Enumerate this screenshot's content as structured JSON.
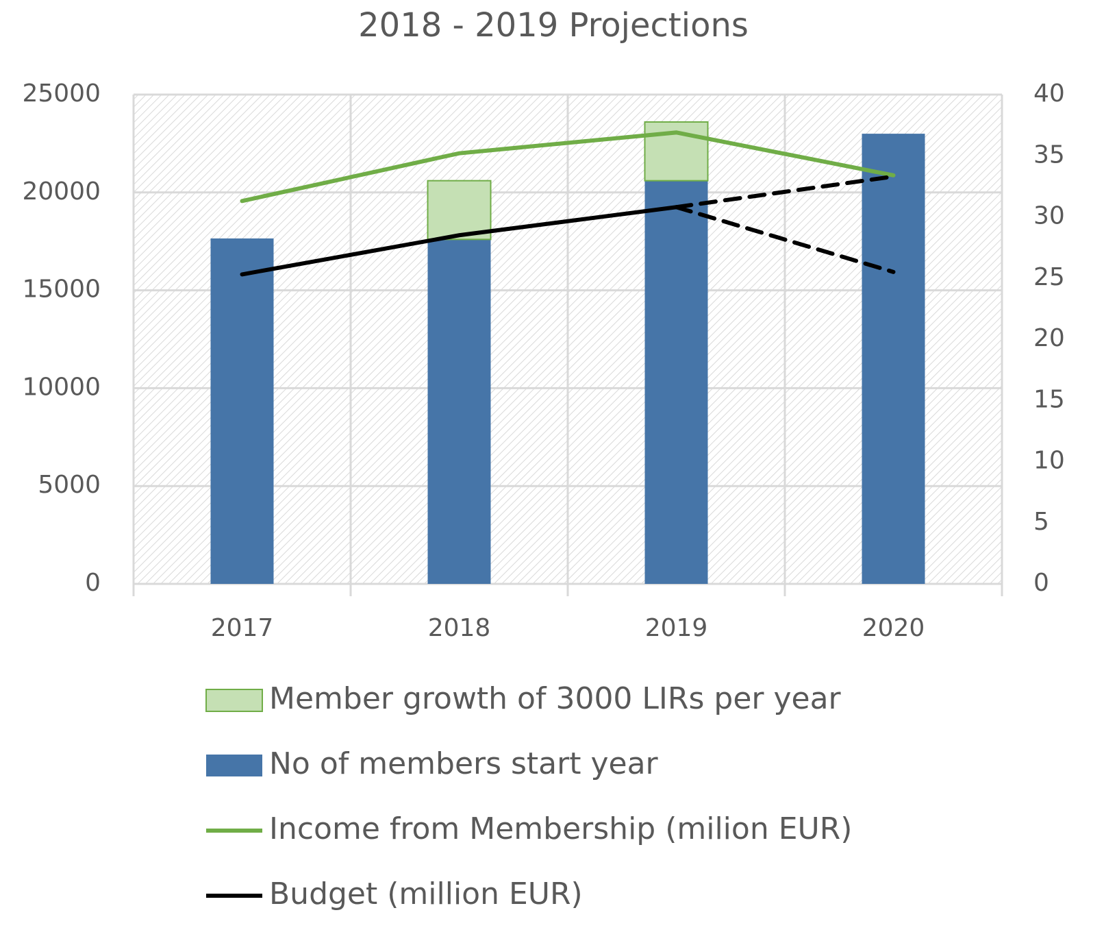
{
  "chart_data": {
    "type": "bar",
    "title": "2018 - 2019 Projections",
    "categories": [
      "2017",
      "2018",
      "2019",
      "2020"
    ],
    "series": [
      {
        "name": "Member growth of 3000 LIRs per year",
        "type": "bar",
        "color": "#c5e0b4",
        "edge": "#70ad47",
        "values": [
          null,
          3000,
          3000,
          null
        ]
      },
      {
        "name": "No of members start year",
        "type": "bar",
        "color": "#4675a8",
        "values": [
          17650,
          17600,
          20600,
          23000
        ]
      },
      {
        "name": "Income from Membership (milion EUR)",
        "type": "line",
        "axis": "y2",
        "color": "#70ad47",
        "values": [
          31.3,
          35.2,
          36.9,
          33.4
        ]
      },
      {
        "name": "Budget (million EUR)",
        "type": "line",
        "axis": "y2",
        "color": "#000000",
        "values": [
          25.3,
          28.5,
          30.8,
          null
        ]
      },
      {
        "type": "line",
        "axis": "y2",
        "color": "#000000",
        "dash": true,
        "values": [
          null,
          null,
          30.8,
          33.3
        ]
      },
      {
        "type": "line",
        "axis": "y2",
        "color": "#000000",
        "dash": true,
        "values": [
          null,
          null,
          30.8,
          25.5
        ]
      }
    ],
    "ylim": [
      0,
      25000
    ],
    "yticks": [
      0,
      5000,
      10000,
      15000,
      20000,
      25000
    ],
    "y2lim": [
      0,
      40
    ],
    "y2ticks": [
      0,
      5,
      10,
      15,
      20,
      25,
      30,
      35,
      40
    ],
    "grid": true,
    "legend": "bottom"
  }
}
